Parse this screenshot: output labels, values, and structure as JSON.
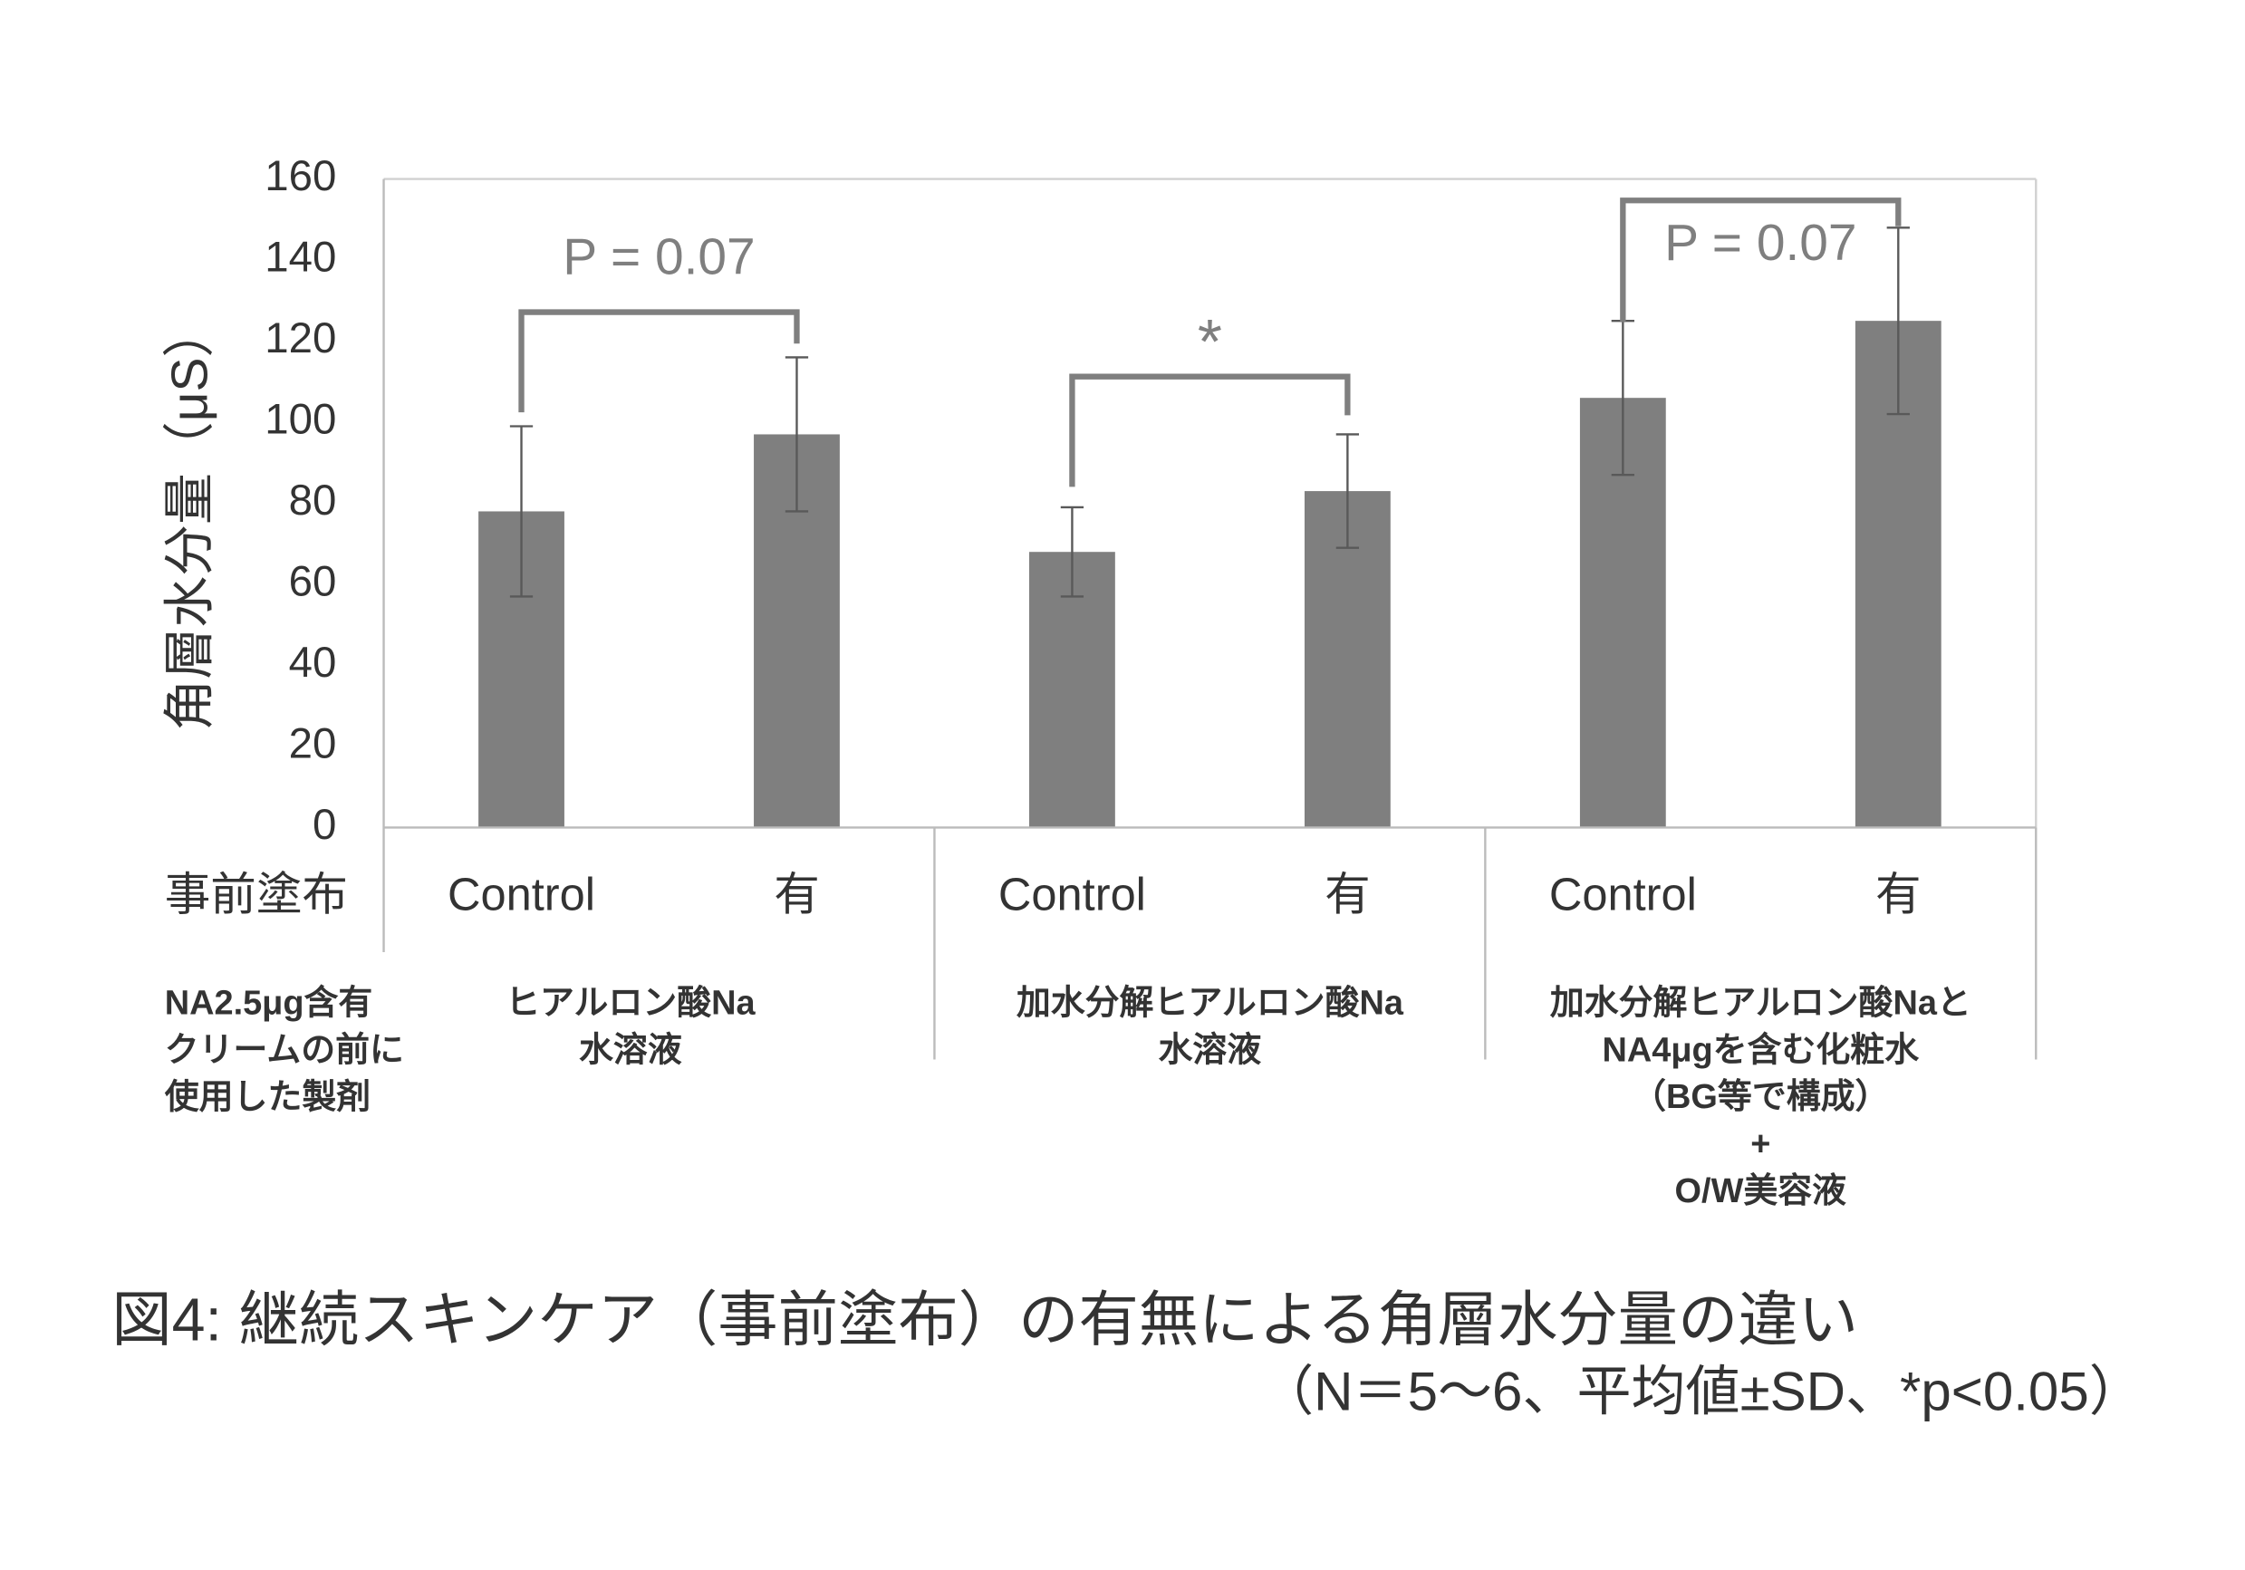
{
  "chart_data": {
    "type": "bar",
    "title": "図4: 継続スキンケア（事前塗布）の有無による角層水分量の違い",
    "subtitle": "（N＝5～6、平均値±SD、*p<0.05）",
    "y_label": "角層水分量（μS）",
    "row_label": "事前塗布",
    "categories": [
      "Control",
      "有",
      "Control",
      "有",
      "Control",
      "有"
    ],
    "values": [
      78,
      97,
      68,
      83,
      106,
      125
    ],
    "errors": [
      21,
      19,
      11,
      14,
      19,
      23
    ],
    "color": "#7f7f7f",
    "error_color": "#595959",
    "ylim": [
      0,
      160
    ],
    "yticks": [
      0,
      20,
      40,
      60,
      80,
      100,
      120,
      140,
      160
    ],
    "grid": false,
    "group_note": [
      "NA2.5μg含有",
      "クリームの前に",
      "使用した製剤"
    ],
    "groups": [
      {
        "lines": [
          "ヒアルロン酸Na",
          "水溶液"
        ]
      },
      {
        "lines": [
          "加水分解ヒアルロン酸Na",
          "水溶液"
        ]
      },
      {
        "lines": [
          "加水分解ヒアルロン酸Naと",
          "NA4μgを含む化粧水",
          "（BG等で構成）",
          "+",
          "O/W美容液"
        ]
      }
    ],
    "annotations": [
      "P = 0.07",
      "*",
      "P = 0.07"
    ]
  }
}
